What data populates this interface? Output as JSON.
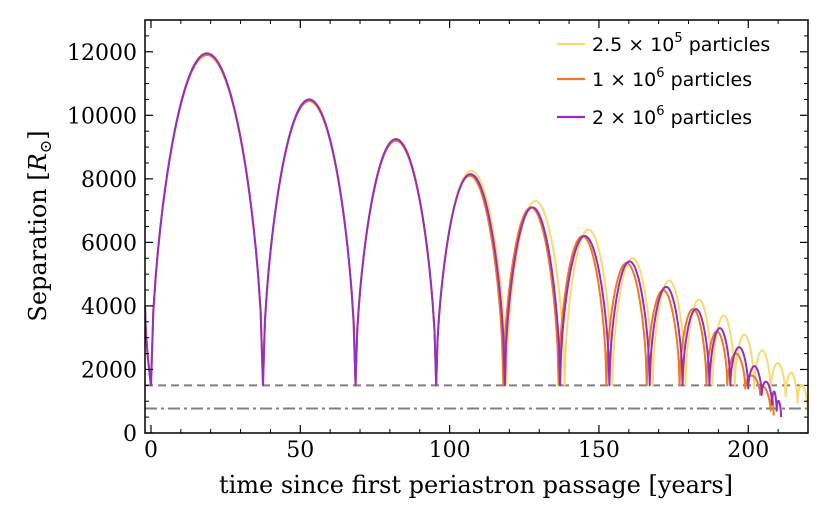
{
  "chart_data": {
    "type": "line",
    "xlabel": "time since first periastron passage [years]",
    "ylabel": "Separation [",
    "ylabel_symbol": "R",
    "ylabel_sub": "⊙",
    "ylabel_close": "]",
    "xlim": [
      -2,
      220
    ],
    "ylim": [
      0,
      13000
    ],
    "x_ticks": [
      0,
      50,
      100,
      150,
      200
    ],
    "y_ticks": [
      0,
      2000,
      4000,
      6000,
      8000,
      10000,
      12000
    ],
    "legend_position": "top-right",
    "reference_lines": [
      {
        "style": "dashed",
        "y": 1500,
        "color": "#808080"
      },
      {
        "style": "dashdot",
        "y": 770,
        "color": "#808080"
      }
    ],
    "series": [
      {
        "name": "2.5 × 10⁵ particles",
        "legend_base": "2.5 × 10",
        "legend_exp": "5",
        "legend_tail": " particles",
        "color": "#fcd870",
        "width": 2,
        "x_start": -2,
        "y_start": 4000,
        "periastra": [
          0,
          37.5,
          68.5,
          95.5,
          119,
          138.5,
          154.5,
          168,
          179,
          188,
          195.5,
          202,
          207.5,
          212.5,
          216.5,
          220
        ],
        "minima": [
          1500,
          1500,
          1500,
          1500,
          1500,
          1500,
          1500,
          1500,
          1500,
          1500,
          1500,
          1400,
          1300,
          1150,
          950,
          600
        ],
        "apoastra": [
          11950,
          10500,
          9250,
          8250,
          7300,
          6400,
          5500,
          4800,
          4200,
          3700,
          3100,
          2600,
          2200,
          1900,
          1500
        ]
      },
      {
        "name": "1 × 10⁶ particles",
        "legend_base": "1 × 10",
        "legend_exp": "6",
        "legend_tail": " particles",
        "color": "#f07820",
        "width": 2,
        "x_start": -2,
        "y_start": 4000,
        "periastra": [
          0,
          37.5,
          68.5,
          95.5,
          118,
          136.5,
          152.5,
          166,
          177,
          186,
          193,
          199,
          204,
          207.5,
          208.5
        ],
        "minima": [
          1500,
          1500,
          1500,
          1500,
          1500,
          1500,
          1500,
          1500,
          1500,
          1500,
          1500,
          1400,
          1200,
          700,
          550
        ],
        "apoastra": [
          11900,
          10450,
          9200,
          8100,
          7100,
          6200,
          5350,
          4500,
          3900,
          3200,
          2500,
          1800,
          1400,
          1100
        ]
      },
      {
        "name": "2 × 10⁶ particles",
        "legend_base": "2 × 10",
        "legend_exp": "6",
        "legend_tail": " particles",
        "color": "#9330c0",
        "width": 2,
        "x_start": -2,
        "y_start": 4000,
        "periastra": [
          0,
          37.5,
          68.5,
          95.5,
          118.5,
          137,
          153.5,
          167,
          178,
          187,
          194,
          200,
          204.5,
          208,
          209.5,
          211
        ],
        "minima": [
          1500,
          1500,
          1500,
          1500,
          1500,
          1500,
          1500,
          1500,
          1500,
          1500,
          1500,
          1400,
          1200,
          900,
          700,
          500
        ],
        "apoastra": [
          11950,
          10500,
          9250,
          8150,
          7100,
          6200,
          5400,
          4600,
          3900,
          3300,
          2700,
          2100,
          1600,
          1300,
          1000
        ]
      }
    ]
  }
}
